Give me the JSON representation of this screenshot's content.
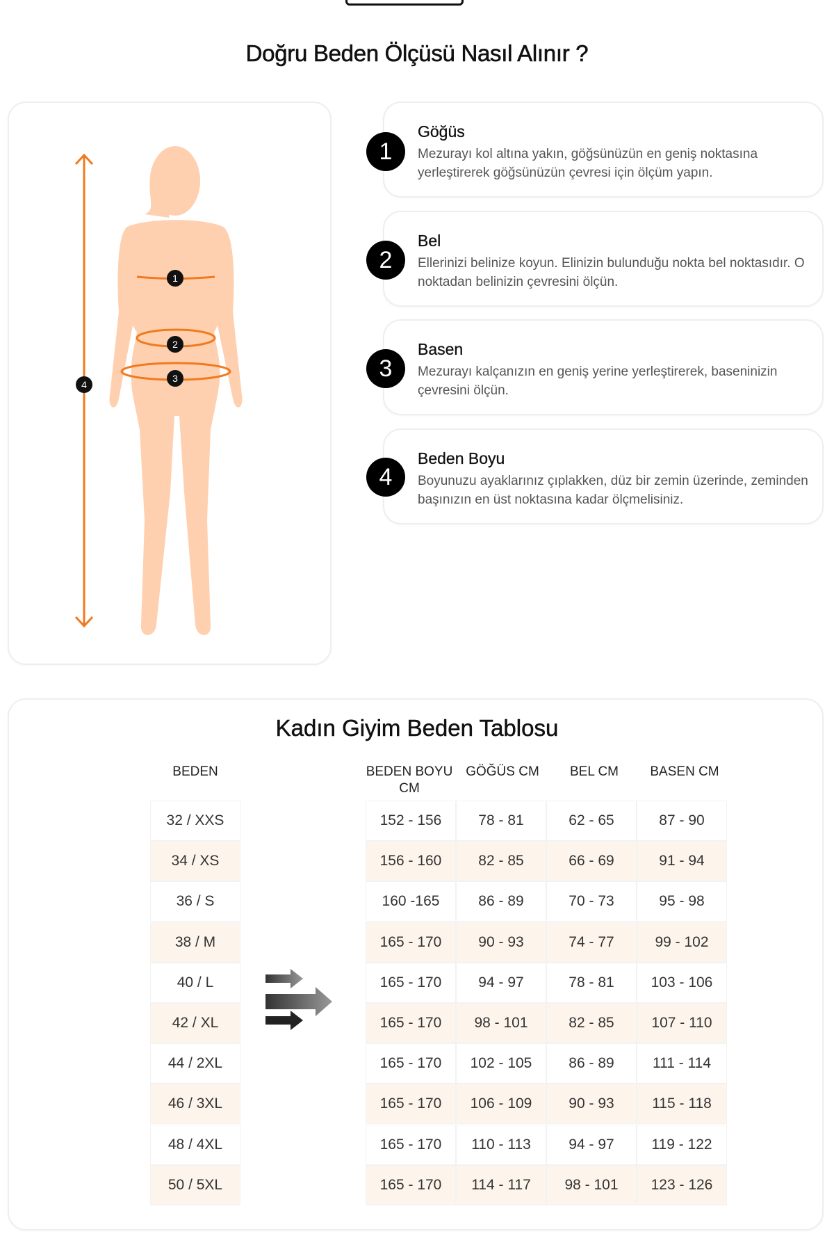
{
  "title": "Doğru Beden Ölçüsü Nasıl Alınır ?",
  "colors": {
    "accent": "#f07a1e",
    "body": "#ffd0b0",
    "row_alt": "#fdf5ec"
  },
  "figure": {
    "markers": [
      "1",
      "2",
      "3",
      "4"
    ]
  },
  "steps": [
    {
      "num": "1",
      "title": "Göğüs",
      "desc": "Mezurayı kol altına yakın, göğsünüzün en geniş noktasına yerleştirerek göğsünüzün çevresi için ölçüm yapın."
    },
    {
      "num": "2",
      "title": "Bel",
      "desc": "Ellerinizi belinize koyun. Elinizin bulunduğu nokta bel noktasıdır. O noktadan belinizin çevresini ölçün."
    },
    {
      "num": "3",
      "title": "Basen",
      "desc": "Mezurayı kalçanızın en geniş yerine yerleştirerek, baseninizin çevresini ölçün."
    },
    {
      "num": "4",
      "title": "Beden Boyu",
      "desc": "Boyunuzu ayaklarınız çıplakken, düz bir zemin üzerinde, zeminden başınızın en üst noktasına kadar ölçmelisiniz."
    }
  ],
  "table": {
    "title": "Kadın Giyim Beden Tablosu",
    "headers": [
      "BEDEN",
      "BEDEN BOYU CM",
      "GÖĞÜS CM",
      "BEL CM",
      "BASEN CM"
    ],
    "rows": [
      [
        "32 / XXS",
        "152 - 156",
        "78 - 81",
        "62 - 65",
        "87 - 90"
      ],
      [
        "34 / XS",
        "156 - 160",
        "82 - 85",
        "66 - 69",
        "91 - 94"
      ],
      [
        "36 / S",
        "160 -165",
        "86 - 89",
        "70 - 73",
        "95 - 98"
      ],
      [
        "38 / M",
        "165 - 170",
        "90 - 93",
        "74 - 77",
        "99 - 102"
      ],
      [
        "40 / L",
        "165 - 170",
        "94 - 97",
        "78 - 81",
        "103 - 106"
      ],
      [
        "42 / XL",
        "165 - 170",
        "98 - 101",
        "82 - 85",
        "107 - 110"
      ],
      [
        "44 / 2XL",
        "165 - 170",
        "102 - 105",
        "86 - 89",
        "111 - 114"
      ],
      [
        "46 / 3XL",
        "165 - 170",
        "106 - 109",
        "90 - 93",
        "115 - 118"
      ],
      [
        "48 / 4XL",
        "165 - 170",
        "110 - 113",
        "94 - 97",
        "119 - 122"
      ],
      [
        "50 / 5XL",
        "165 - 170",
        "114 - 117",
        "98 - 101",
        "123 - 126"
      ]
    ]
  }
}
